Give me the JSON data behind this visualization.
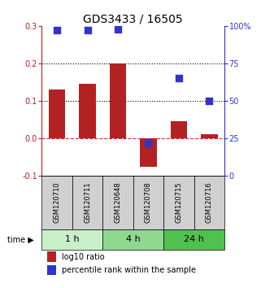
{
  "title": "GDS3433 / 16505",
  "samples": [
    "GSM120710",
    "GSM120711",
    "GSM120648",
    "GSM120708",
    "GSM120715",
    "GSM120716"
  ],
  "log10_ratio": [
    0.13,
    0.145,
    0.2,
    -0.075,
    0.045,
    0.01
  ],
  "percentile_rank": [
    97,
    97,
    98,
    22,
    65,
    50
  ],
  "left_ylim": [
    -0.1,
    0.3
  ],
  "right_ylim": [
    0,
    100
  ],
  "left_yticks": [
    -0.1,
    0.0,
    0.1,
    0.2,
    0.3
  ],
  "right_yticks": [
    0,
    25,
    50,
    75,
    100
  ],
  "right_yticklabels": [
    "0",
    "25",
    "50",
    "75",
    "100%"
  ],
  "hlines": [
    0.1,
    0.2
  ],
  "bar_color": "#b22222",
  "dot_color": "#3333cc",
  "zero_line_color": "#cc3333",
  "hline_color": "#000000",
  "time_groups": [
    {
      "label": "1 h",
      "indices": [
        0,
        1
      ],
      "color": "#c8f0c8"
    },
    {
      "label": "4 h",
      "indices": [
        2,
        3
      ],
      "color": "#90d890"
    },
    {
      "label": "24 h",
      "indices": [
        4,
        5
      ],
      "color": "#50c050"
    }
  ],
  "legend_log10_color": "#b22222",
  "legend_pct_color": "#3333cc",
  "bar_width": 0.55,
  "dot_size": 30,
  "title_fontsize": 10,
  "tick_fontsize": 7,
  "sample_label_fontsize": 6,
  "time_label_fontsize": 8,
  "sample_label_bg": "#d0d0d0"
}
